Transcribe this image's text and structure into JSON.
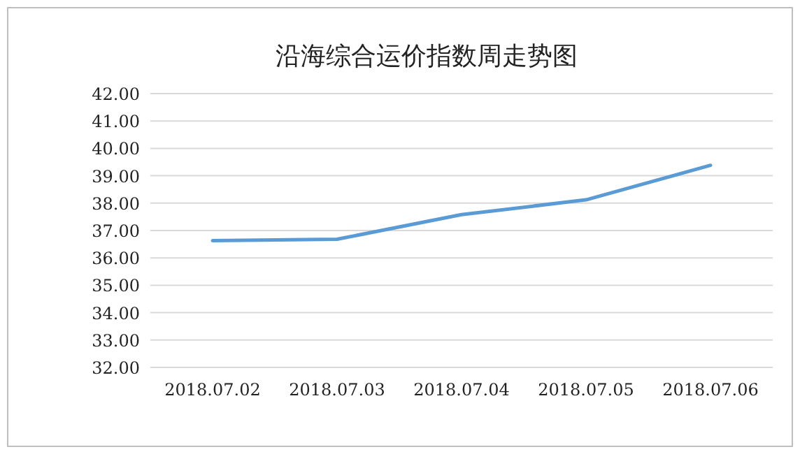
{
  "chart_data": {
    "type": "line",
    "title": "沿海综合运价指数周走势图",
    "categories": [
      "2018.07.02",
      "2018.07.03",
      "2018.07.04",
      "2018.07.05",
      "2018.07.06"
    ],
    "series": [
      {
        "color": "#5b9bd5",
        "values": [
          36.63,
          36.68,
          37.58,
          38.12,
          39.38
        ]
      }
    ],
    "ylim": [
      32,
      42
    ],
    "yticks": [
      {
        "value": 32,
        "label": "32.00"
      },
      {
        "value": 33,
        "label": "33.00"
      },
      {
        "value": 34,
        "label": "34.00"
      },
      {
        "value": 35,
        "label": "35.00"
      },
      {
        "value": 36,
        "label": "36.00"
      },
      {
        "value": 37,
        "label": "37.00"
      },
      {
        "value": 38,
        "label": "38.00"
      },
      {
        "value": 39,
        "label": "39.00"
      },
      {
        "value": 40,
        "label": "40.00"
      },
      {
        "value": 41,
        "label": "41.00"
      },
      {
        "value": 42,
        "label": "42.00"
      }
    ],
    "grid": "y",
    "marker": "none",
    "line_style": "solid"
  }
}
